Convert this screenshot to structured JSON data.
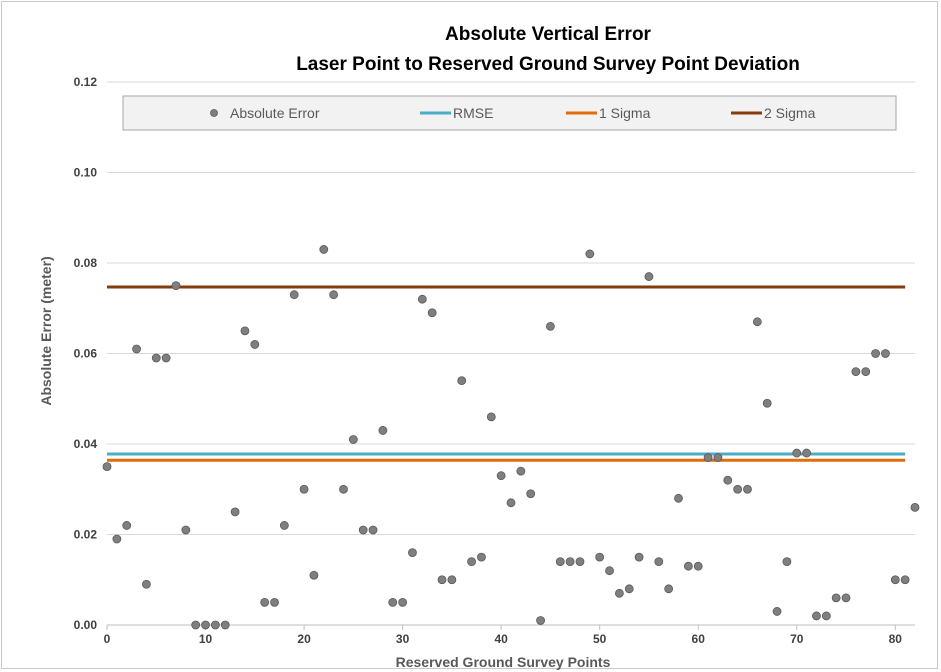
{
  "chart_data": {
    "type": "scatter",
    "title_lines": [
      "Absolute Vertical Error",
      "Laser Point to Reserved Ground Survey Point Deviation"
    ],
    "xlabel": "Reserved Ground Survey Points",
    "ylabel": "Absolute Error (meter)",
    "xlim": [
      0,
      82
    ],
    "ylim": [
      0,
      0.12
    ],
    "x_ticks": [
      0,
      10,
      20,
      30,
      40,
      50,
      60,
      70,
      80
    ],
    "x_tick_labels": [
      "0",
      "10",
      "20",
      "30",
      "40",
      "50",
      "60",
      "70",
      "80"
    ],
    "y_ticks": [
      0,
      0.02,
      0.04,
      0.06,
      0.08,
      0.1,
      0.12
    ],
    "y_tick_labels": [
      "0.00",
      "0.02",
      "0.04",
      "0.06",
      "0.08",
      "0.10",
      "0.12"
    ],
    "grid": "horizontal",
    "legend_position": "top",
    "series": [
      {
        "name": "Absolute Error",
        "kind": "points",
        "color": "#7f7f7f",
        "x": [
          0,
          1,
          2,
          3,
          4,
          5,
          6,
          7,
          8,
          9,
          10,
          11,
          12,
          13,
          14,
          15,
          16,
          17,
          18,
          19,
          20,
          21,
          22,
          23,
          24,
          25,
          26,
          27,
          28,
          29,
          30,
          31,
          32,
          33,
          34,
          35,
          36,
          37,
          38,
          39,
          40,
          41,
          42,
          43,
          44,
          45,
          46,
          47,
          48,
          49,
          50,
          51,
          52,
          53,
          54,
          55,
          56,
          57,
          58,
          59,
          60,
          61,
          62,
          63,
          64,
          65,
          66,
          67,
          68,
          69,
          70,
          71,
          72,
          73,
          74,
          75,
          76,
          77,
          78,
          79,
          80,
          81,
          82
        ],
        "y": [
          0.035,
          0.019,
          0.022,
          0.061,
          0.009,
          0.059,
          0.059,
          0.075,
          0.021,
          0.0,
          0.0,
          0.0,
          0.0,
          0.025,
          0.065,
          0.062,
          0.005,
          0.005,
          0.022,
          0.073,
          0.03,
          0.011,
          0.083,
          0.073,
          0.03,
          0.041,
          0.021,
          0.021,
          0.043,
          0.005,
          0.005,
          0.016,
          0.072,
          0.069,
          0.01,
          0.01,
          0.054,
          0.014,
          0.015,
          0.046,
          0.033,
          0.027,
          0.034,
          0.029,
          0.001,
          0.066,
          0.014,
          0.014,
          0.014,
          0.082,
          0.015,
          0.012,
          0.007,
          0.008,
          0.015,
          0.077,
          0.014,
          0.008,
          0.028,
          0.013,
          0.013,
          0.037,
          0.037,
          0.032,
          0.03,
          0.03,
          0.067,
          0.049,
          0.003,
          0.014,
          0.038,
          0.038,
          0.002,
          0.002,
          0.006,
          0.006,
          0.056,
          0.056,
          0.06,
          0.06,
          0.01,
          0.01,
          0.026
        ]
      },
      {
        "name": "RMSE",
        "kind": "line",
        "color": "#4bacc6",
        "value": 0.0378,
        "x_range": [
          0,
          81
        ]
      },
      {
        "name": "1 Sigma",
        "kind": "line",
        "color": "#e36c09",
        "value": 0.0364,
        "x_range": [
          0,
          81
        ]
      },
      {
        "name": "2 Sigma",
        "kind": "line",
        "color": "#843c0c",
        "value": 0.0747,
        "x_range": [
          0,
          81
        ]
      }
    ]
  },
  "colors": {
    "gridline": "#d9d9d9",
    "axis": "#bfbfbf",
    "legend_fill": "#f2f2f2",
    "legend_border": "#a6a6a6",
    "marker_stroke": "#595959"
  }
}
